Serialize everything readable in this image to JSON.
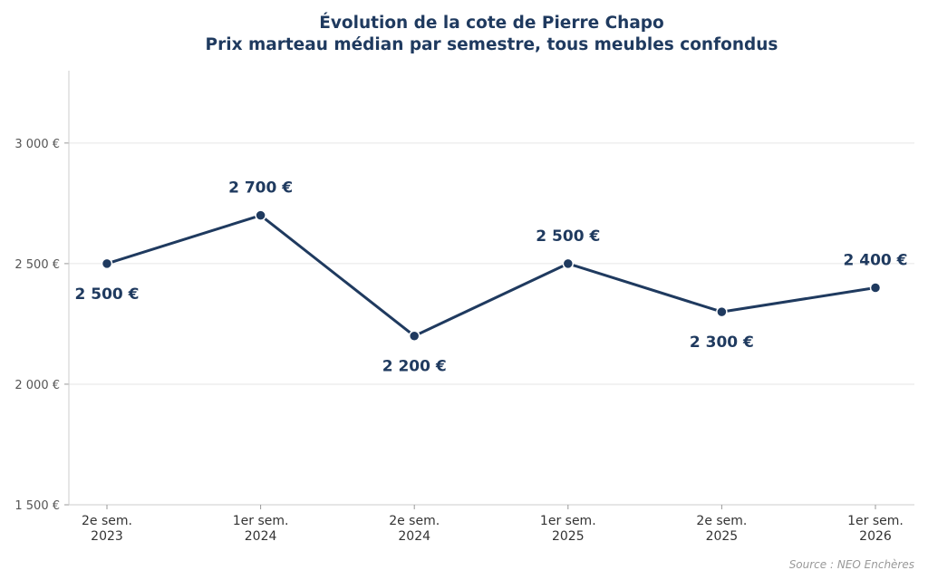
{
  "chart_data": {
    "type": "line",
    "title": "Évolution de la cote de Pierre Chapo",
    "subtitle": "Prix marteau médian par semestre, tous meubles confondus",
    "categories": [
      [
        "2e sem.",
        "2023"
      ],
      [
        "1er sem.",
        "2024"
      ],
      [
        "2e sem.",
        "2024"
      ],
      [
        "1er sem.",
        "2025"
      ],
      [
        "2e sem.",
        "2025"
      ],
      [
        "1er sem.",
        "2026"
      ]
    ],
    "values": [
      2500,
      2700,
      2200,
      2500,
      2300,
      2400
    ],
    "data_labels": [
      "2 500 €",
      "2 700 €",
      "2 200 €",
      "2 500 €",
      "2 300 €",
      "2 400 €"
    ],
    "y_ticks": [
      1500,
      2000,
      2500,
      3000
    ],
    "y_tick_labels": [
      "1 500 €",
      "2 000 €",
      "2 500 €",
      "3 000 €"
    ],
    "ylim": [
      1500,
      3300
    ],
    "grid": true,
    "line_color": "#1f3a5f",
    "source": "Source : NEO Enchères"
  }
}
